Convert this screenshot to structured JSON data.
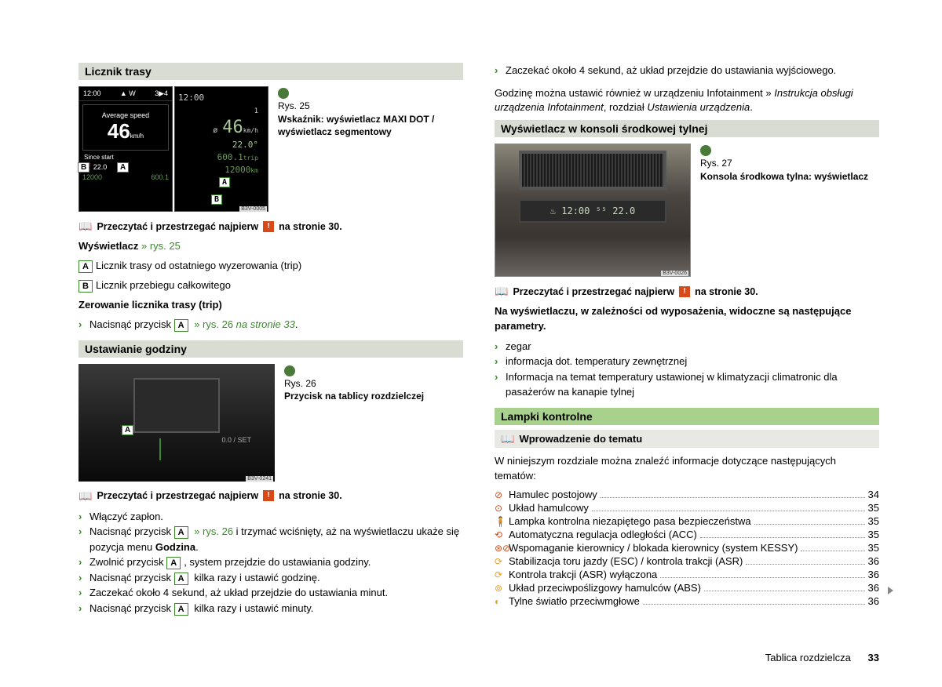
{
  "left": {
    "sec1_title": "Licznik trasy",
    "fig25": {
      "rys": "Rys. 25",
      "caption": "Wskaźnik: wyświetlacz MAXI DOT / wyświetlacz segmentowy",
      "code": "B3V-0005",
      "disp1": {
        "time": "12:00",
        "compass": "▲ W",
        "gear": "3▶4",
        "avg_label": "Average speed",
        "avg_val": "46",
        "avg_unit": "km/h",
        "since": "Since start",
        "rowB_icon": "⛽",
        "rowB_val": "22.0",
        "rowA_val": "",
        "bottom_left": "12000",
        "bottom_right": "600.1"
      },
      "disp2": {
        "time": "12:00",
        "speed": "46",
        "unit": "km/h",
        "temp": "22.0°",
        "trip": "600.1",
        "trip_lbl": "trip",
        "odo": "12000",
        "odo_lbl": "km"
      }
    },
    "note1": "Przeczytać i przestrzegać najpierw",
    "note1_page": "na stronie  30.",
    "wys_label": "Wyświetlacz",
    "wys_ref": "» rys. 25",
    "itemA": "Licznik trasy od ostatniego wyzerowania (trip)",
    "itemB": "Licznik przebiegu całkowitego",
    "reset_title": "Zerowanie licznika trasy (trip)",
    "reset_text1": "Nacisnąć przycisk ",
    "reset_ref": " » rys. 26",
    "reset_page": " na stronie 33",
    "sec2_title": "Ustawianie godziny",
    "fig26": {
      "rys": "Rys. 26",
      "caption": "Przycisk na tablicy rozdzielczej",
      "code": "B3V-0241",
      "txt": "0.0 / SET"
    },
    "note2": "Przeczytać i przestrzegać najpierw",
    "note2_page": "na stronie  30.",
    "steps": [
      {
        "t": "Włączyć zapłon."
      },
      {
        "t1": "Nacisnąć przycisk ",
        "key": "A",
        "ref": " » rys. 26",
        "t2": " i trzymać wciśnięty, aż na wyświetlaczu ukaże się pozycja menu ",
        "bold": "Godzina",
        "t3": "."
      },
      {
        "t1": "Zwolnić przycisk ",
        "key": "A",
        "t2": ", system przejdzie do ustawiania godziny."
      },
      {
        "t1": "Nacisnąć przycisk ",
        "key": "A",
        "t2": " kilka razy i ustawić godzinę."
      },
      {
        "t": "Zaczekać około 4 sekund, aż układ przejdzie do ustawiania minut."
      },
      {
        "t1": "Nacisnąć przycisk ",
        "key": "A",
        "t2": " kilka razy i ustawić minuty."
      }
    ]
  },
  "right": {
    "cont_step": "Zaczekać około 4 sekund, aż układ przejdzie do ustawiania wyjściowego.",
    "info_para1": "Godzinę można ustawić również w urządzeniu Infotainment » ",
    "info_para2": "Instrukcja obsługi urządzenia Infotainment",
    "info_para3": ", rozdział ",
    "info_para4": "Ustawienia urządzenia",
    "sec3_title": "Wyświetlacz w konsoli środkowej tylnej",
    "fig27": {
      "rys": "Rys. 27",
      "caption": "Konsola środkowa tylna: wyświetlacz",
      "code": "B3V-0026",
      "panel": "♨ 12:00 ⁵⁵ 22.0"
    },
    "note3": "Przeczytać i przestrzegać najpierw",
    "note3_page": "na stronie  30.",
    "params_title": "Na wyświetlaczu, w zależności od wyposażenia, widoczne są następujące parametry.",
    "params": [
      "zegar",
      "informacja dot. temperatury zewnętrznej",
      "Informacja na temat temperatury ustawionej w klimatyzacji climatronic dla pasażerów na kanapie tylnej"
    ],
    "sec4_title": "Lampki kontrolne",
    "sub_title": "Wprowadzenie do tematu",
    "intro": "W niniejszym rozdziale można znaleźć informacje dotyczące następujących tematów:",
    "toc": [
      {
        "icon": "⊘",
        "color": "",
        "label": "Hamulec postojowy",
        "page": "34"
      },
      {
        "icon": "⊙",
        "color": "",
        "label": "Układ hamulcowy",
        "page": "35"
      },
      {
        "icon": "🧍",
        "color": "",
        "label": "Lampka kontrolna niezapiętego pasa bezpieczeństwa",
        "page": "35"
      },
      {
        "icon": "⟲",
        "color": "",
        "label": "Automatyczna regulacja odległości (ACC)",
        "page": "35"
      },
      {
        "icon": "⊛⊘",
        "color": "",
        "label": "Wspomaganie kierownicy / blokada kierownicy (system KESSY)",
        "page": "35"
      },
      {
        "icon": "⟳",
        "color": "yellow",
        "label": "Stabilizacja toru jazdy (ESC) / kontrola trakcji (ASR)",
        "page": "36"
      },
      {
        "icon": "⟳",
        "color": "yellow",
        "label": "Kontrola trakcji (ASR) wyłączona",
        "page": "36"
      },
      {
        "icon": "⊚",
        "color": "yellow",
        "label": "Układ przeciwpoślizgowy hamulców (ABS)",
        "page": "36"
      },
      {
        "icon": "◐",
        "color": "yellow",
        "label": "Tylne światło przeciwmgłowe",
        "page": "36"
      }
    ]
  },
  "footer": {
    "label": "Tablica rozdzielcza",
    "page": "33"
  }
}
